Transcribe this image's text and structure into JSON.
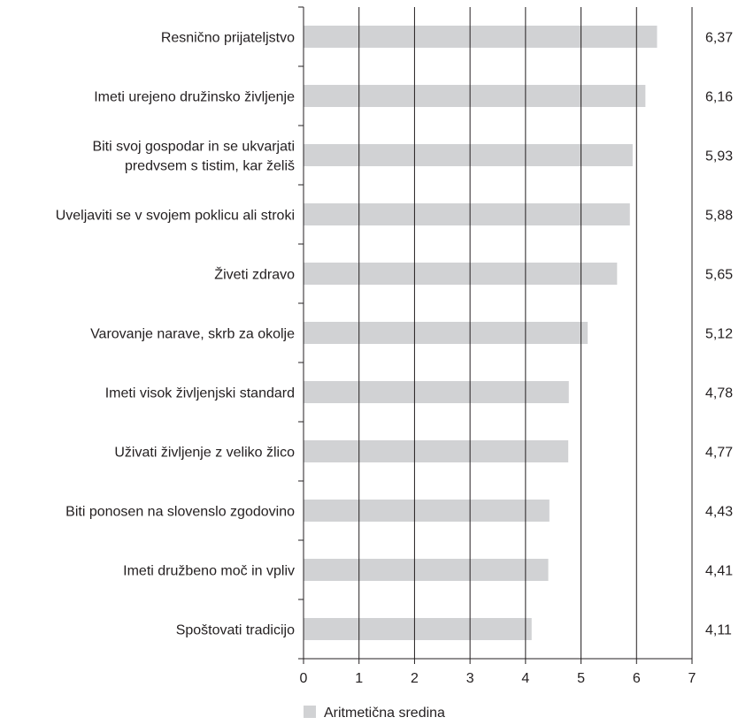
{
  "chart_data": {
    "type": "bar",
    "orientation": "horizontal",
    "categories": [
      [
        "Resnično prijateljstvo"
      ],
      [
        "Imeti urejeno družinsko življenje"
      ],
      [
        "Biti svoj gospodar in se ukvarjati",
        "predvsem s tistim, kar želiš"
      ],
      [
        "Uveljaviti se v svojem poklicu ali stroki"
      ],
      [
        "Živeti zdravo"
      ],
      [
        "Varovanje narave, skrb za okolje"
      ],
      [
        "Imeti visok življenjski standard"
      ],
      [
        "Uživati življenje z veliko žlico"
      ],
      [
        "Biti ponosen na slovenslo zgodovino"
      ],
      [
        "Imeti družbeno moč in vpliv"
      ],
      [
        "Spoštovati tradicijo"
      ]
    ],
    "series": [
      {
        "name": "Aritmetična sredina",
        "values": [
          6.37,
          6.16,
          5.93,
          5.88,
          5.65,
          5.12,
          4.78,
          4.77,
          4.43,
          4.41,
          4.11
        ],
        "value_labels": [
          "6,37",
          "6,16",
          "5,93",
          "5,88",
          "5,65",
          "5,12",
          "4,78",
          "4,77",
          "4,43",
          "4,41",
          "4,11"
        ],
        "color": "#d1d2d4"
      }
    ],
    "xlim": [
      0,
      7
    ],
    "x_ticks": [
      0,
      1,
      2,
      3,
      4,
      5,
      6,
      7
    ],
    "x_tick_labels": [
      "0",
      "1",
      "2",
      "3",
      "4",
      "5",
      "6",
      "7"
    ],
    "grid": "vertical",
    "legend_position": "bottom",
    "title": "",
    "xlabel": "",
    "ylabel": ""
  }
}
